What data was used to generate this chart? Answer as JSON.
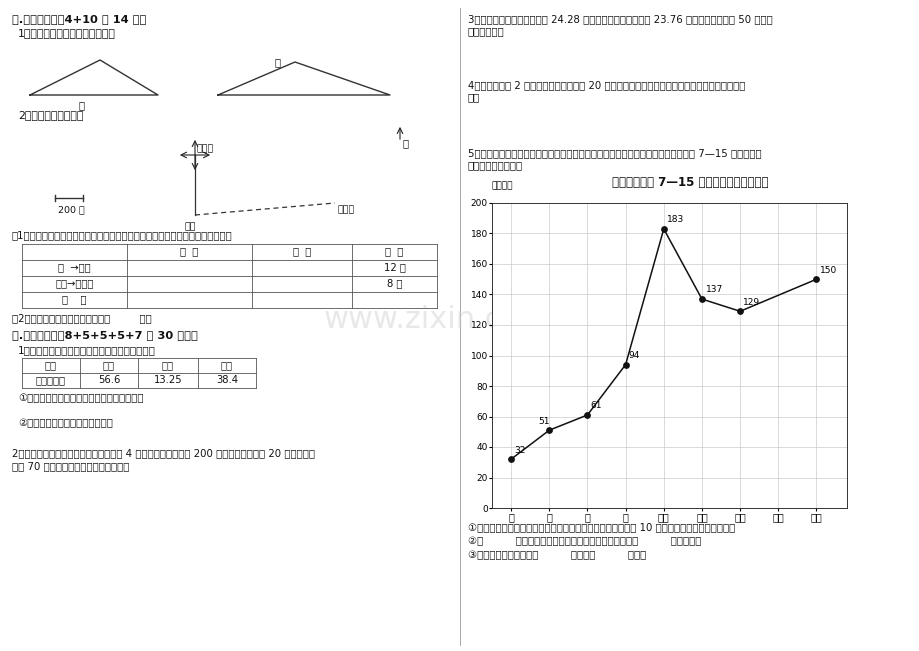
{
  "page_bg": "#ffffff",
  "left": {
    "s5_title": "五.探索与实践（4+10 共 14 分）",
    "q1": "1、画出下列三角形指定底的高。",
    "q2": "2、量一量，填一填。",
    "scale_label": "200 米",
    "loc_home": "小刚家",
    "loc_park": "公园",
    "loc_lib": "图书馆",
    "north": "北",
    "table_header": [
      "",
      "方  向",
      "路  程",
      "时  间"
    ],
    "table_rows": [
      [
        "家  →公园",
        "",
        "",
        "12 分"
      ],
      [
        "公园→图书馆",
        "",
        "",
        "8 分"
      ],
      [
        "全    程",
        "",
        "",
        ""
      ]
    ],
    "sub1": "（1）根据上面的路线图，认一认小刚去图书馆时所走的方向和路程，完成下表。",
    "sub2": "（2）小刚走完全程的平均速度是（         ）。",
    "s6_title": "六.解决问题。（8+5+5+5+7 共 30 分。）",
    "q3": "1、张大伯昨天卖苹果、香蕉和龙眼的收入如下：",
    "fruit_h": [
      "名称",
      "苹果",
      "香蕉",
      "龙眼"
    ],
    "fruit_d": [
      "收入（元）",
      "56.6",
      "13.25",
      "38.4"
    ],
    "q3s1": "①张大伯昨天卖苹果的收入比香蕉多多少元？",
    "q3s2": "②张大伯昨天的总收入是多少元？",
    "q4l1": "2、爸爸带小刚去滑雪。乘缆车上山用了 4 分钟，缆车每分钟行 200 米，滑雪下山用了 20 分钟，每分",
    "q4l2": "钟行 70 米。滑雪比乘缆车多行多少米？"
  },
  "right": {
    "q1l1": "3、李老师买数学参考书用了 24.28 元，买语文书参考书用了 23.76 元，他付给售货员 50 元，应",
    "q1l2": "找回多少钱？",
    "q2l1": "4、一条公路长 2 千米，在路的一旁每隔 20 米种一棵杨树，起点和终点都种。一共要种多少课杨",
    "q2l2": "树？",
    "q3l1": "5、中国代表团在亚洲运动会上金牌数已经连续七届高居榜首，下面是中国代表团第 7—15 届亚运会获",
    "q3l2": "得金牌情况统计图。",
    "chart_title": "中国代表团第 7—15 届获得金牌情况统计图",
    "chart_unit": "单位：块",
    "x_labels": [
      "七",
      "八",
      "九",
      "十",
      "十一",
      "十二",
      "十三",
      "十四",
      "十五"
    ],
    "values": [
      32,
      51,
      61,
      94,
      183,
      137,
      129,
      null,
      150
    ],
    "yticks": [
      0,
      20,
      40,
      60,
      80,
      100,
      120,
      140,
      160,
      180,
      200
    ],
    "q4s1": "①第十五届多哈亚运会中国代表团的金牌数比第十四届增加了 10 块。把上面的统计图画完整。",
    "q4s2": "②（          ）届亚运会中国代表团获得的金牌数最多，（          ）届最少。",
    "q4s3": "③金牌数上升最快的是（          ）届到（          ）届。"
  }
}
